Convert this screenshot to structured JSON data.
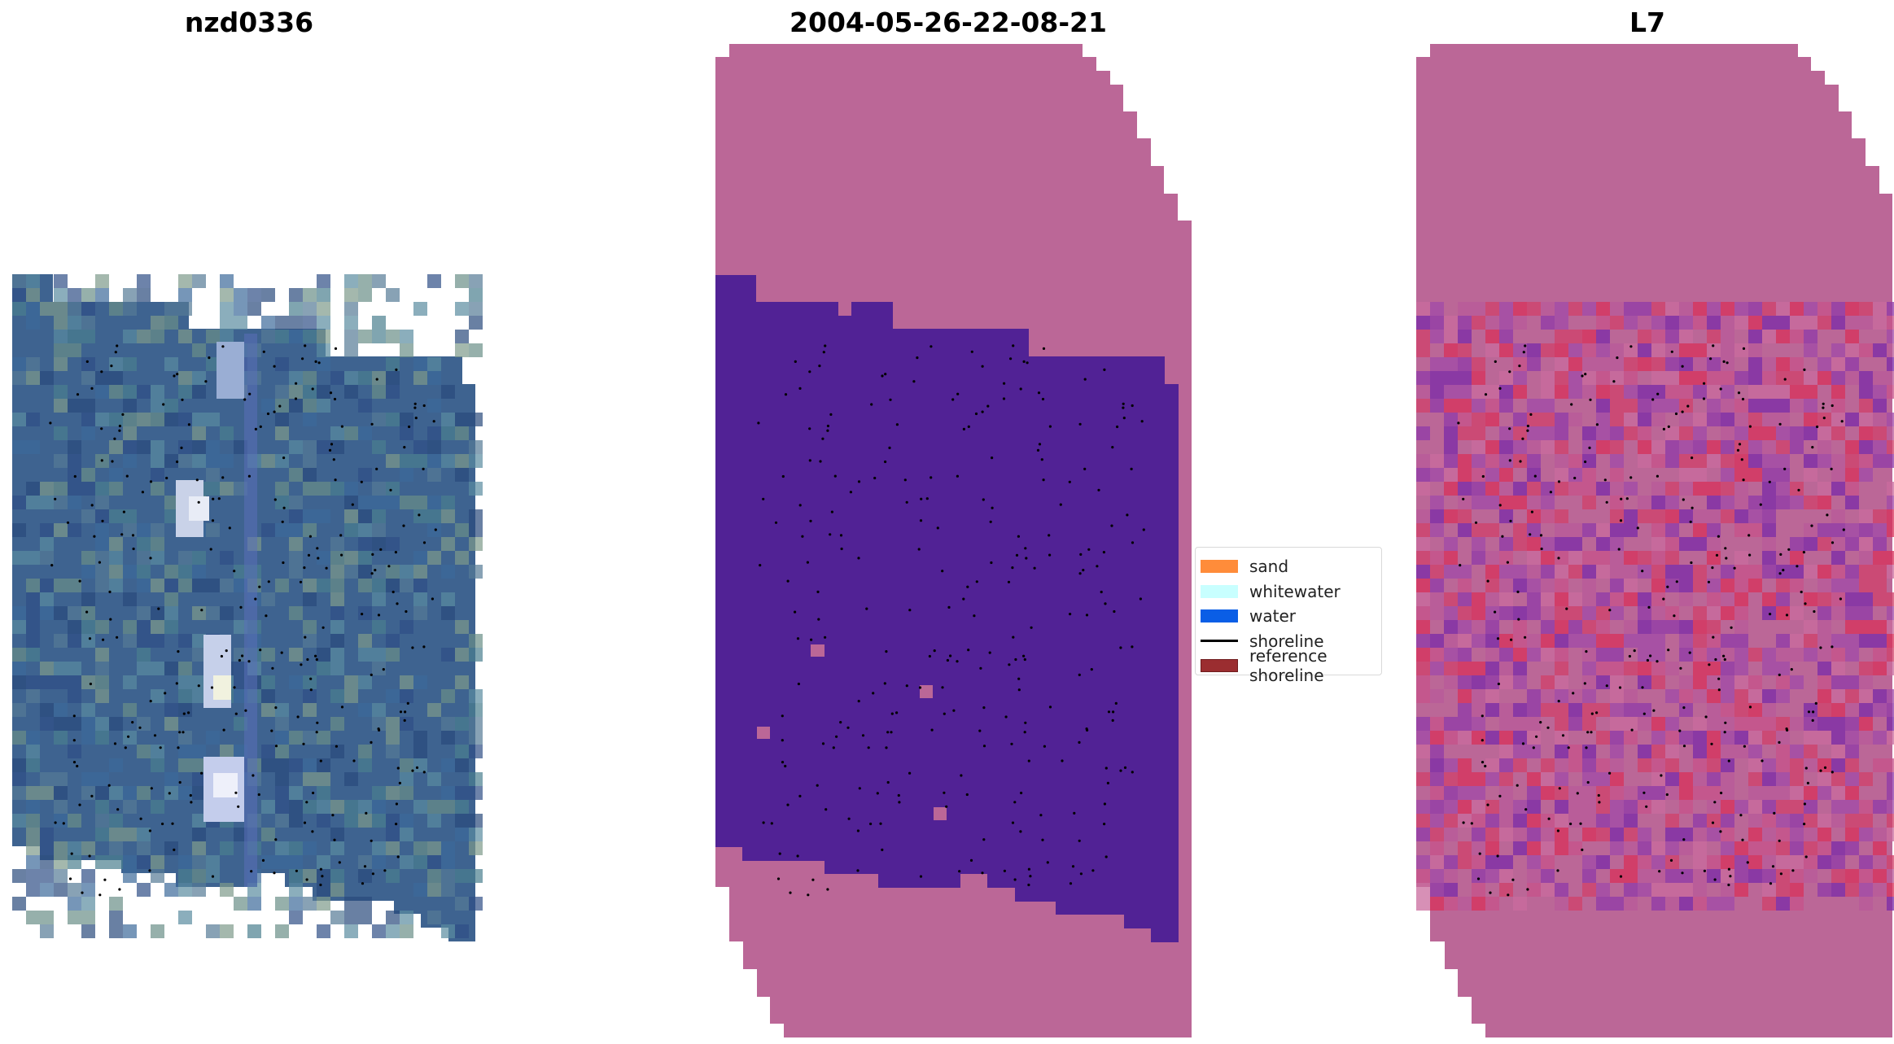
{
  "titles": {
    "site": "nzd0336",
    "date": "2004-05-26-22-08-21",
    "satellite": "L7"
  },
  "legend": {
    "items": [
      {
        "label": "sand",
        "color": "#ff8c3a",
        "kind": "patch"
      },
      {
        "label": "whitewater",
        "color": "#c8ffff",
        "kind": "patch"
      },
      {
        "label": "water",
        "color": "#0a5ee6",
        "kind": "patch"
      },
      {
        "label": "shoreline",
        "color": "#000000",
        "kind": "line"
      },
      {
        "label": "reference shoreline",
        "color": "#9b2d30",
        "kind": "patch"
      }
    ]
  },
  "colors": {
    "nodata": "#bb6797",
    "class_map_background": "#512295",
    "rgb_base": "#3e6390",
    "shoreline_dots": "#000000"
  }
}
